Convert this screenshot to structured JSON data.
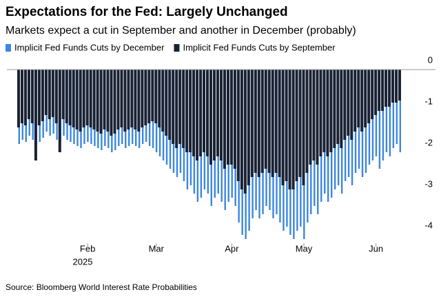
{
  "chart_data": {
    "type": "bar",
    "title": "Expectations for the Fed: Largely Unchanged",
    "subtitle": "Markets expect a cut in September and another in December (probably)",
    "source": "Source: Bloomberg World Interest Rate Probabilities",
    "x_sublabel": "2025",
    "categories": [
      null,
      null,
      null,
      null,
      null,
      null,
      null,
      null,
      null,
      null,
      null,
      null,
      null,
      null,
      null,
      null,
      null,
      null,
      null,
      null,
      "Feb",
      null,
      null,
      null,
      null,
      null,
      null,
      null,
      null,
      null,
      null,
      null,
      null,
      null,
      null,
      null,
      null,
      null,
      null,
      null,
      "Mar",
      null,
      null,
      null,
      null,
      null,
      null,
      null,
      null,
      null,
      null,
      null,
      null,
      null,
      null,
      null,
      null,
      null,
      null,
      null,
      null,
      null,
      "Apr",
      null,
      null,
      null,
      null,
      null,
      null,
      null,
      null,
      null,
      null,
      null,
      null,
      null,
      null,
      null,
      null,
      null,
      null,
      null,
      null,
      "May",
      null,
      null,
      null,
      null,
      null,
      null,
      null,
      null,
      null,
      null,
      null,
      null,
      null,
      null,
      null,
      null,
      null,
      null,
      null,
      null,
      "Jun",
      null,
      null,
      null,
      null,
      null,
      null,
      null
    ],
    "series": [
      {
        "name": "Implicit Fed Funds Cuts by December",
        "color": "#3b86e0",
        "values": [
          -1.8,
          -1.7,
          -1.75,
          -1.6,
          -1.7,
          -1.8,
          -1.75,
          -1.65,
          -1.5,
          -1.6,
          -1.55,
          -1.7,
          -1.75,
          -1.6,
          -1.7,
          -1.75,
          -1.8,
          -1.85,
          -1.9,
          -1.8,
          -1.75,
          -1.8,
          -1.85,
          -1.9,
          -1.95,
          -1.85,
          -1.9,
          -2.0,
          -1.95,
          -1.85,
          -1.8,
          -1.9,
          -1.85,
          -1.8,
          -1.85,
          -1.9,
          -1.8,
          -1.75,
          -1.85,
          -1.9,
          -2.0,
          -2.1,
          -2.2,
          -2.3,
          -2.4,
          -2.5,
          -2.6,
          -2.5,
          -2.7,
          -2.9,
          -2.8,
          -3.0,
          -3.2,
          -3.1,
          -2.9,
          -3.0,
          -3.3,
          -3.1,
          -3.0,
          -3.2,
          -3.4,
          -3.2,
          -3.1,
          -3.3,
          -3.7,
          -4.0,
          -4.1,
          -3.9,
          -3.6,
          -3.4,
          -3.6,
          -3.5,
          -3.3,
          -3.4,
          -3.6,
          -3.5,
          -3.7,
          -3.9,
          -3.8,
          -4.0,
          -4.1,
          -3.9,
          -3.8,
          -4.1,
          -3.7,
          -3.5,
          -3.3,
          -3.5,
          -3.2,
          -3.0,
          -3.2,
          -3.1,
          -2.9,
          -2.8,
          -3.0,
          -2.7,
          -2.6,
          -2.8,
          -2.5,
          -2.4,
          -2.6,
          -2.5,
          -2.3,
          -2.2,
          -2.1,
          -2.4,
          -2.2,
          -2.0,
          -2.1,
          -1.9,
          -1.8,
          -2.0
        ]
      },
      {
        "name": "Implicit Fed Funds Cuts by September",
        "color": "#1a2233",
        "values": [
          -1.4,
          -1.3,
          -1.35,
          -1.2,
          -1.3,
          -2.2,
          -1.35,
          -1.25,
          -1.1,
          -1.2,
          -1.15,
          -1.3,
          -2.0,
          -1.2,
          -1.3,
          -1.35,
          -1.4,
          -1.45,
          -1.5,
          -1.4,
          -1.35,
          -1.4,
          -1.45,
          -1.5,
          -1.55,
          -1.45,
          -1.5,
          -1.6,
          -1.55,
          -1.45,
          -1.4,
          -1.5,
          -1.45,
          -1.4,
          -1.45,
          -1.5,
          -1.4,
          -1.35,
          -1.3,
          -1.25,
          -1.3,
          -1.4,
          -1.5,
          -1.6,
          -1.7,
          -1.8,
          -1.9,
          -1.8,
          -1.9,
          -2.0,
          -2.0,
          -2.1,
          -2.2,
          -2.1,
          -2.0,
          -2.1,
          -2.3,
          -2.2,
          -2.1,
          -2.2,
          -2.4,
          -2.3,
          -2.3,
          -2.4,
          -2.7,
          -2.9,
          -3.0,
          -2.8,
          -2.6,
          -2.5,
          -2.6,
          -2.5,
          -2.4,
          -2.5,
          -2.6,
          -2.5,
          -2.6,
          -2.8,
          -2.7,
          -2.9,
          -2.9,
          -2.7,
          -2.6,
          -2.8,
          -2.5,
          -2.3,
          -2.2,
          -2.3,
          -2.1,
          -2.0,
          -2.1,
          -2.0,
          -1.9,
          -1.8,
          -1.9,
          -1.7,
          -1.6,
          -1.7,
          -1.5,
          -1.4,
          -1.5,
          -1.4,
          -1.3,
          -1.2,
          -1.1,
          -1.0,
          -1.0,
          -0.9,
          -0.9,
          -0.8,
          -0.8,
          -0.75
        ]
      }
    ],
    "ylim": [
      -4.2,
      0.3
    ],
    "yticks": [
      0,
      -1,
      -2,
      -3,
      -4
    ],
    "grid": false
  }
}
